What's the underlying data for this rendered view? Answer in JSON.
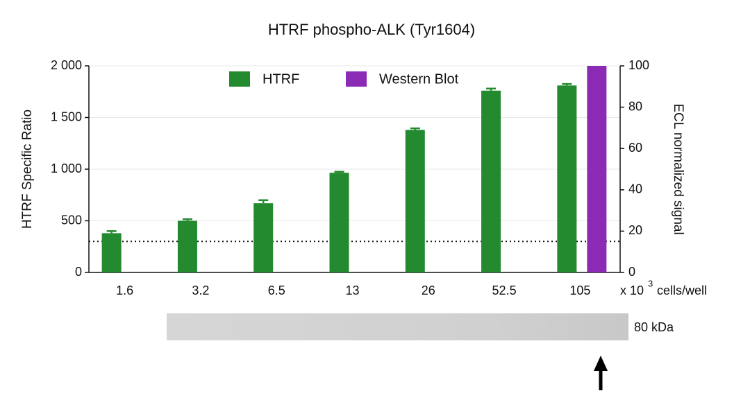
{
  "chart_data": {
    "type": "bar",
    "title": "HTRF phospho-ALK (Tyr1604)",
    "y_label": "HTRF Specific Ratio",
    "y2_label": "ECL normalized signal",
    "x_label_prefix": "x 10",
    "x_label_exponent": "3",
    "x_label_suffix": " cells/well",
    "categories": [
      "1.6",
      "3.2",
      "6.5",
      "13",
      "26",
      "52.5",
      "105"
    ],
    "series": [
      {
        "name": "HTRF",
        "color": "#238a2f",
        "axis": "y",
        "values": [
          380,
          500,
          670,
          965,
          1380,
          1760,
          1810
        ],
        "errors": [
          20,
          15,
          30,
          10,
          15,
          20,
          15
        ]
      },
      {
        "name": "Western Blot",
        "color": "#8b2bb5",
        "axis": "y2",
        "values": [
          null,
          null,
          null,
          null,
          null,
          null,
          100
        ]
      }
    ],
    "ylim": [
      0,
      2000
    ],
    "yticks": [
      {
        "value": 0,
        "label": "0"
      },
      {
        "value": 500,
        "label": "500"
      },
      {
        "value": 1000,
        "label": "1 000"
      },
      {
        "value": 1500,
        "label": "1 500"
      },
      {
        "value": 2000,
        "label": "2 000"
      }
    ],
    "y2lim": [
      0,
      100
    ],
    "y2ticks": [
      0,
      20,
      40,
      60,
      80,
      100
    ],
    "reference_line": 300,
    "grid": true,
    "legend": "top",
    "blot_label": "80 kDa"
  }
}
